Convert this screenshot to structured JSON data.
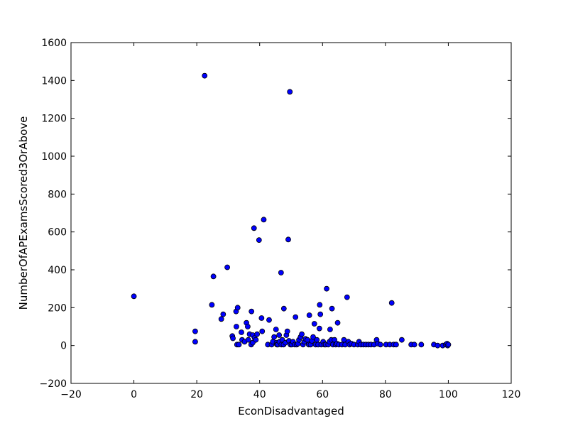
{
  "chart_data": {
    "type": "scatter",
    "xlabel": "EconDisadvantaged",
    "ylabel": "NumberOfAPExamsScored3OrAbove",
    "xlim": [
      -20,
      120
    ],
    "ylim": [
      -200,
      1600
    ],
    "xticks": [
      -20,
      0,
      20,
      40,
      60,
      80,
      100,
      120
    ],
    "yticks": [
      -200,
      0,
      200,
      400,
      600,
      800,
      1000,
      1200,
      1400,
      1600
    ],
    "grid": false,
    "marker_color": "#0000ff",
    "marker_edge_color": "#000000",
    "points": [
      [
        0,
        260
      ],
      [
        19.5,
        75
      ],
      [
        19.5,
        20
      ],
      [
        22.5,
        1425
      ],
      [
        24.8,
        215
      ],
      [
        25.3,
        365
      ],
      [
        27.8,
        140
      ],
      [
        28.4,
        165
      ],
      [
        29.7,
        413
      ],
      [
        31.3,
        50
      ],
      [
        31.5,
        38
      ],
      [
        32.5,
        180
      ],
      [
        33.0,
        200
      ],
      [
        32.6,
        100
      ],
      [
        32.8,
        5
      ],
      [
        33.4,
        5
      ],
      [
        34.2,
        70
      ],
      [
        34.4,
        30
      ],
      [
        35.2,
        20
      ],
      [
        35.8,
        120
      ],
      [
        36.2,
        100
      ],
      [
        36.4,
        30
      ],
      [
        36.8,
        60
      ],
      [
        37.4,
        180
      ],
      [
        37.3,
        5
      ],
      [
        37.8,
        55
      ],
      [
        37.8,
        15
      ],
      [
        38.2,
        620
      ],
      [
        38.4,
        40
      ],
      [
        38.8,
        30
      ],
      [
        39.2,
        60
      ],
      [
        39.8,
        557
      ],
      [
        40.6,
        145
      ],
      [
        40.8,
        75
      ],
      [
        41.3,
        665
      ],
      [
        42.6,
        5
      ],
      [
        43.0,
        135
      ],
      [
        43.8,
        5
      ],
      [
        44.2,
        20
      ],
      [
        44.6,
        45
      ],
      [
        45.2,
        85
      ],
      [
        45.4,
        15
      ],
      [
        45.5,
        5
      ],
      [
        45.8,
        5
      ],
      [
        46.2,
        55
      ],
      [
        46.3,
        20
      ],
      [
        46.8,
        385
      ],
      [
        46.9,
        5
      ],
      [
        47.2,
        30
      ],
      [
        47.6,
        5
      ],
      [
        47.7,
        195
      ],
      [
        48.2,
        15
      ],
      [
        48.5,
        55
      ],
      [
        48.8,
        75
      ],
      [
        49.1,
        560
      ],
      [
        49.3,
        25
      ],
      [
        49.6,
        1340
      ],
      [
        49.8,
        5
      ],
      [
        50.2,
        5
      ],
      [
        50.6,
        20
      ],
      [
        51.2,
        5
      ],
      [
        51.4,
        150
      ],
      [
        51.8,
        5
      ],
      [
        52.2,
        10
      ],
      [
        52.5,
        30
      ],
      [
        53.0,
        45
      ],
      [
        53.4,
        60
      ],
      [
        53.8,
        5
      ],
      [
        54.2,
        20
      ],
      [
        54.6,
        35
      ],
      [
        55.2,
        30
      ],
      [
        55.6,
        5
      ],
      [
        55.8,
        160
      ],
      [
        56.2,
        5
      ],
      [
        56.6,
        25
      ],
      [
        57.0,
        45
      ],
      [
        57.4,
        115
      ],
      [
        57.8,
        5
      ],
      [
        58.2,
        30
      ],
      [
        58.6,
        5
      ],
      [
        59.0,
        90
      ],
      [
        59.1,
        215
      ],
      [
        59.3,
        165
      ],
      [
        59.6,
        5
      ],
      [
        60.2,
        20
      ],
      [
        60.6,
        5
      ],
      [
        61.0,
        5
      ],
      [
        61.3,
        300
      ],
      [
        61.8,
        5
      ],
      [
        62.2,
        20
      ],
      [
        62.4,
        85
      ],
      [
        62.8,
        30
      ],
      [
        63.0,
        195
      ],
      [
        63.3,
        5
      ],
      [
        63.8,
        30
      ],
      [
        64.2,
        5
      ],
      [
        64.6,
        10
      ],
      [
        64.8,
        120
      ],
      [
        65.2,
        5
      ],
      [
        66.2,
        5
      ],
      [
        66.8,
        30
      ],
      [
        67.2,
        5
      ],
      [
        67.8,
        255
      ],
      [
        68.2,
        20
      ],
      [
        68.6,
        5
      ],
      [
        69.2,
        10
      ],
      [
        70.0,
        5
      ],
      [
        71.2,
        5
      ],
      [
        71.6,
        20
      ],
      [
        72.2,
        5
      ],
      [
        73.0,
        5
      ],
      [
        73.8,
        5
      ],
      [
        74.6,
        5
      ],
      [
        75.4,
        5
      ],
      [
        76.4,
        5
      ],
      [
        77.2,
        30
      ],
      [
        77.6,
        10
      ],
      [
        78.4,
        5
      ],
      [
        80.2,
        5
      ],
      [
        81.4,
        5
      ],
      [
        82.0,
        225
      ],
      [
        82.6,
        5
      ],
      [
        83.4,
        5
      ],
      [
        85.2,
        30
      ],
      [
        88.2,
        5
      ],
      [
        89.2,
        5
      ],
      [
        91.4,
        5
      ],
      [
        95.4,
        5
      ],
      [
        96.6,
        0
      ],
      [
        98.2,
        0
      ],
      [
        99.2,
        5
      ],
      [
        99.6,
        10
      ],
      [
        99.8,
        0
      ],
      [
        100.0,
        5
      ]
    ]
  }
}
